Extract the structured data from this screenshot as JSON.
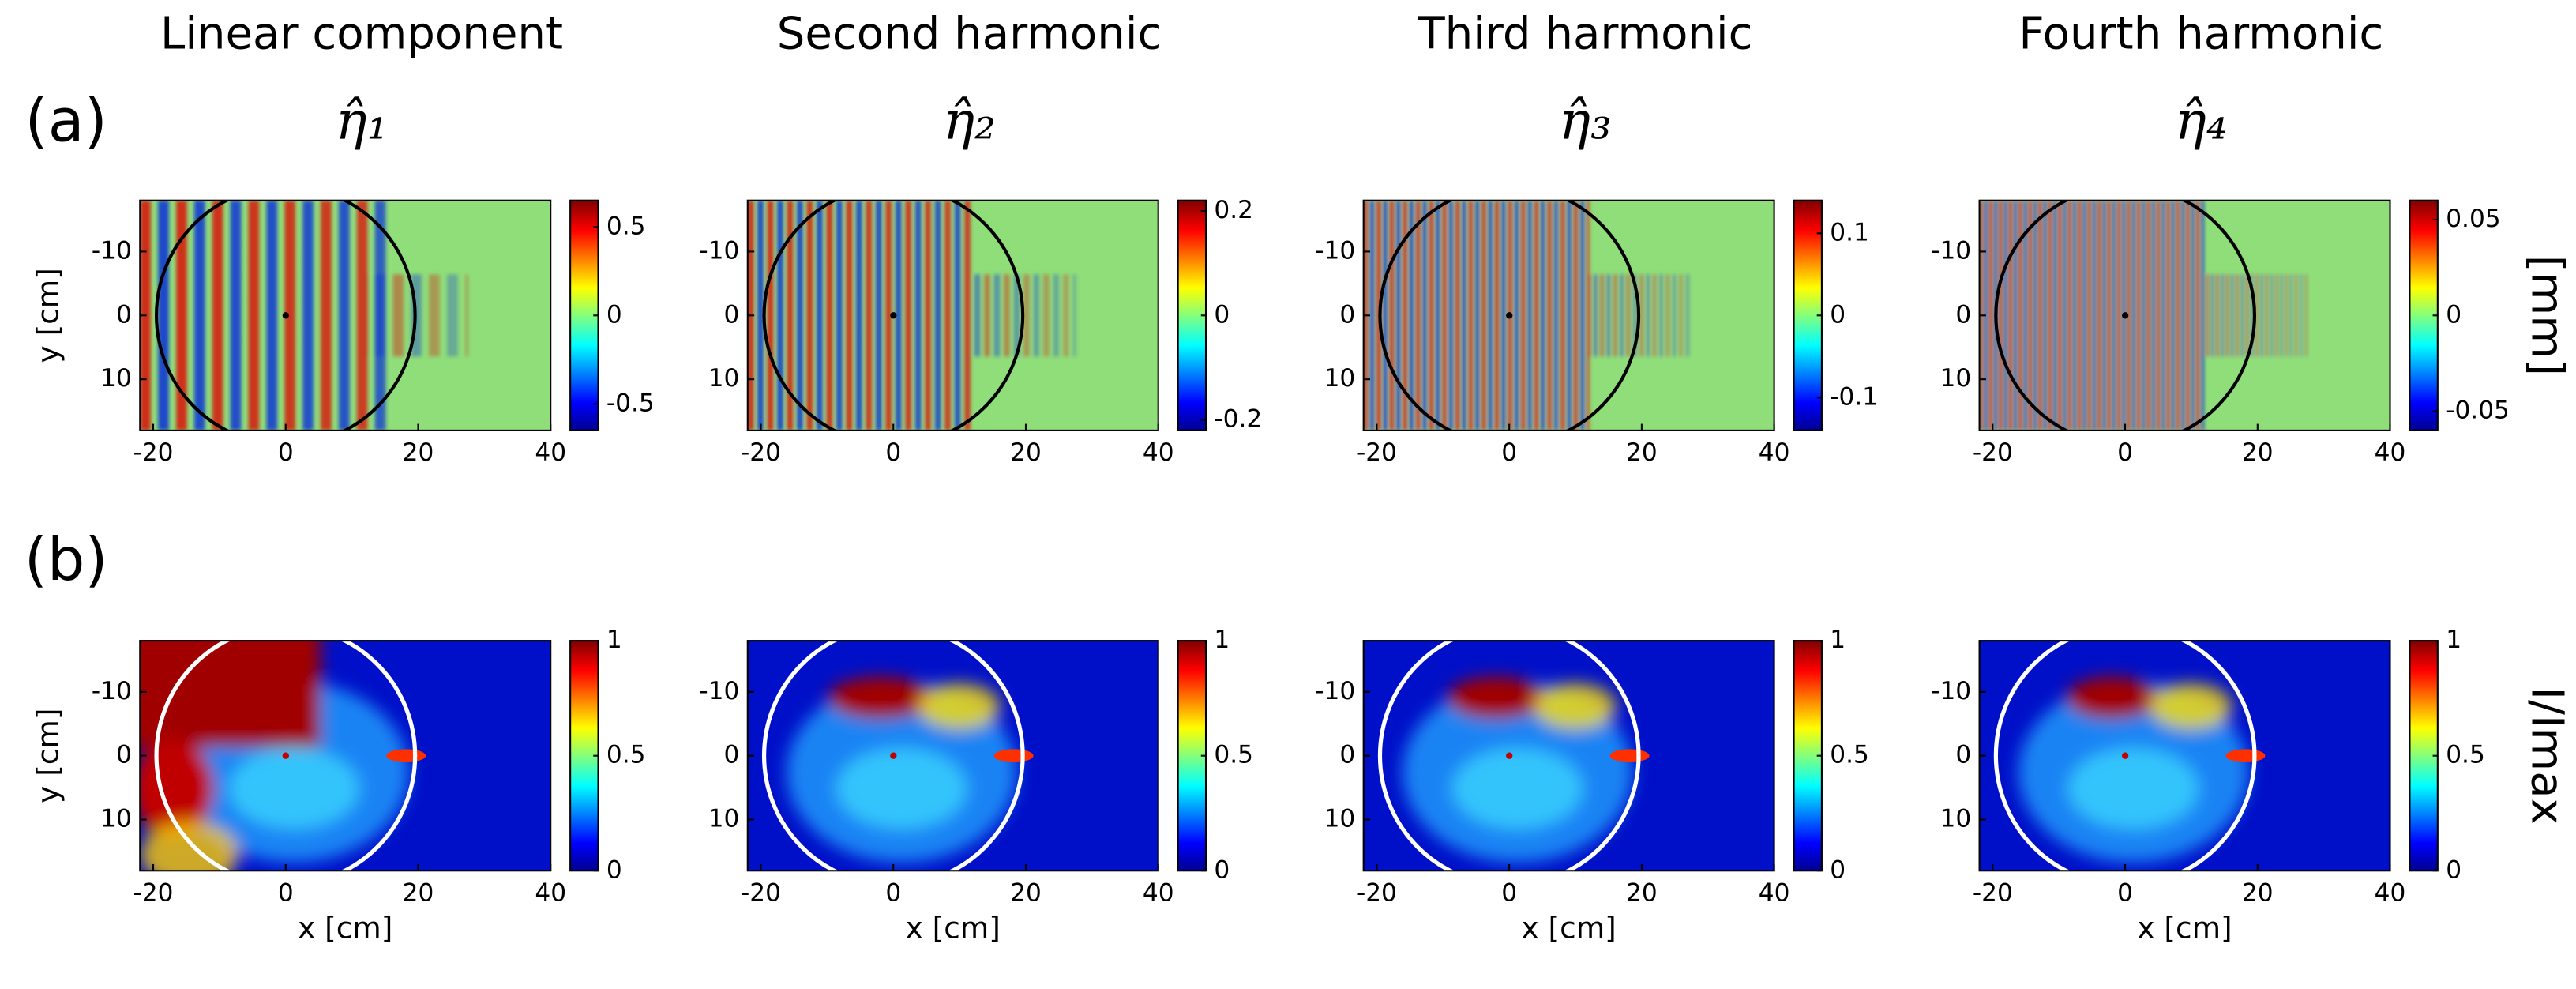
{
  "panel_labels": [
    "(a)",
    "(b)"
  ],
  "chart_data": [
    {
      "type": "heatmap",
      "title": "Linear component",
      "subtitle": "η̂₁",
      "ylabel": "y [cm]",
      "xlim": [
        -22,
        40
      ],
      "xticks": [
        -20,
        0,
        20,
        40
      ],
      "ylim": [
        18,
        -18
      ],
      "yticks": [
        -10,
        0,
        10
      ],
      "clim": [
        -0.65,
        0.65
      ],
      "cticks": [
        -0.5,
        0,
        0.5
      ]
    },
    {
      "type": "heatmap",
      "title": "Second harmonic",
      "subtitle": "η̂₂",
      "xlim": [
        -22,
        40
      ],
      "xticks": [
        -20,
        0,
        20,
        40
      ],
      "ylim": [
        18,
        -18
      ],
      "yticks": [
        -10,
        0,
        10
      ],
      "clim": [
        -0.22,
        0.22
      ],
      "cticks": [
        -0.2,
        0,
        0.2
      ]
    },
    {
      "type": "heatmap",
      "title": "Third harmonic",
      "subtitle": "η̂₃",
      "xlim": [
        -22,
        40
      ],
      "xticks": [
        -20,
        0,
        20,
        40
      ],
      "ylim": [
        18,
        -18
      ],
      "yticks": [
        -10,
        0,
        10
      ],
      "clim": [
        -0.14,
        0.14
      ],
      "cticks": [
        -0.1,
        0,
        0.1
      ]
    },
    {
      "type": "heatmap",
      "title": "Fourth harmonic",
      "subtitle": "η̂₄",
      "colorbar_label": "[mm]",
      "xlim": [
        -22,
        40
      ],
      "xticks": [
        -20,
        0,
        20,
        40
      ],
      "ylim": [
        18,
        -18
      ],
      "yticks": [
        -10,
        0,
        10
      ],
      "clim": [
        -0.06,
        0.06
      ],
      "cticks": [
        -0.05,
        0,
        0.05
      ]
    },
    {
      "type": "heatmap",
      "xlabel": "x [cm]",
      "ylabel": "y [cm]",
      "xlim": [
        -22,
        40
      ],
      "xticks": [
        -20,
        0,
        20,
        40
      ],
      "ylim": [
        18,
        -18
      ],
      "yticks": [
        -10,
        0,
        10
      ],
      "clim": [
        0,
        1
      ],
      "cticks": [
        0,
        0.5,
        1
      ]
    },
    {
      "type": "heatmap",
      "xlabel": "x [cm]",
      "xlim": [
        -22,
        40
      ],
      "xticks": [
        -20,
        0,
        20,
        40
      ],
      "ylim": [
        18,
        -18
      ],
      "yticks": [
        -10,
        0,
        10
      ],
      "clim": [
        0,
        1
      ],
      "cticks": [
        0,
        0.5,
        1
      ]
    },
    {
      "type": "heatmap",
      "xlabel": "x [cm]",
      "xlim": [
        -22,
        40
      ],
      "xticks": [
        -20,
        0,
        20,
        40
      ],
      "ylim": [
        18,
        -18
      ],
      "yticks": [
        -10,
        0,
        10
      ],
      "clim": [
        0,
        1
      ],
      "cticks": [
        0,
        0.5,
        1
      ]
    },
    {
      "type": "heatmap",
      "xlabel": "x [cm]",
      "colorbar_label": "I/Imax",
      "xlim": [
        -22,
        40
      ],
      "xticks": [
        -20,
        0,
        20,
        40
      ],
      "ylim": [
        18,
        -18
      ],
      "yticks": [
        -10,
        0,
        10
      ],
      "clim": [
        0,
        1
      ],
      "cticks": [
        0,
        0.5,
        1
      ]
    }
  ]
}
